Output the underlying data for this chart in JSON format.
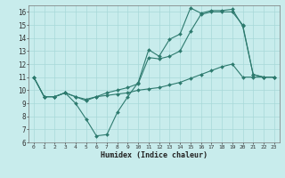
{
  "xlabel": "Humidex (Indice chaleur)",
  "bg_color": "#c8ecec",
  "line_color": "#2d7a6e",
  "grid_color": "#a8d8d8",
  "xlim": [
    -0.5,
    23.5
  ],
  "ylim": [
    6,
    16.5
  ],
  "xticks": [
    0,
    1,
    2,
    3,
    4,
    5,
    6,
    7,
    8,
    9,
    10,
    11,
    12,
    13,
    14,
    15,
    16,
    17,
    18,
    19,
    20,
    21,
    22,
    23
  ],
  "yticks": [
    6,
    7,
    8,
    9,
    10,
    11,
    12,
    13,
    14,
    15,
    16
  ],
  "line1_x": [
    0,
    1,
    2,
    3,
    4,
    5,
    6,
    7,
    8,
    9,
    10,
    11,
    12,
    13,
    14,
    15,
    16,
    17,
    18,
    19,
    20,
    21,
    22,
    23
  ],
  "line1_y": [
    11,
    9.5,
    9.5,
    9.8,
    9.0,
    7.8,
    6.5,
    6.6,
    8.3,
    9.5,
    10.6,
    13.1,
    12.6,
    13.9,
    14.3,
    16.3,
    15.9,
    16.1,
    16.1,
    16.2,
    14.9,
    11.2,
    11.0,
    11.0
  ],
  "line2_x": [
    0,
    1,
    2,
    3,
    4,
    5,
    6,
    7,
    8,
    9,
    10,
    11,
    12,
    13,
    14,
    15,
    16,
    17,
    18,
    19,
    20,
    21,
    22,
    23
  ],
  "line2_y": [
    11,
    9.5,
    9.5,
    9.8,
    9.5,
    9.2,
    9.5,
    9.6,
    9.7,
    9.8,
    10.0,
    10.1,
    10.2,
    10.4,
    10.6,
    10.9,
    11.2,
    11.5,
    11.8,
    12.0,
    11.0,
    11.0,
    11.0,
    11.0
  ],
  "line3_x": [
    0,
    1,
    2,
    3,
    4,
    5,
    6,
    7,
    8,
    9,
    10,
    11,
    12,
    13,
    14,
    15,
    16,
    17,
    18,
    19,
    20,
    21,
    22,
    23
  ],
  "line3_y": [
    11,
    9.5,
    9.5,
    9.8,
    9.5,
    9.3,
    9.5,
    9.8,
    10.0,
    10.2,
    10.5,
    12.5,
    12.4,
    12.6,
    13.0,
    14.5,
    15.8,
    16.0,
    16.0,
    16.0,
    15.0,
    11.2,
    11.0,
    11.0
  ],
  "marker1_x": [
    0,
    1,
    2,
    3,
    4,
    5,
    6,
    7,
    8,
    9,
    10,
    11,
    12,
    13,
    14,
    15,
    16,
    17,
    18,
    19,
    20,
    21,
    22,
    23
  ],
  "marker2_x": [
    0,
    1,
    2,
    3,
    4,
    9,
    10,
    11,
    12,
    13,
    14,
    15,
    16,
    17,
    18,
    19,
    20,
    21,
    22,
    23
  ],
  "marker3_x": [
    0,
    1,
    2,
    3,
    4,
    9,
    10,
    11,
    12,
    13,
    14,
    15,
    16,
    17,
    18,
    19,
    20,
    21,
    22,
    23
  ]
}
